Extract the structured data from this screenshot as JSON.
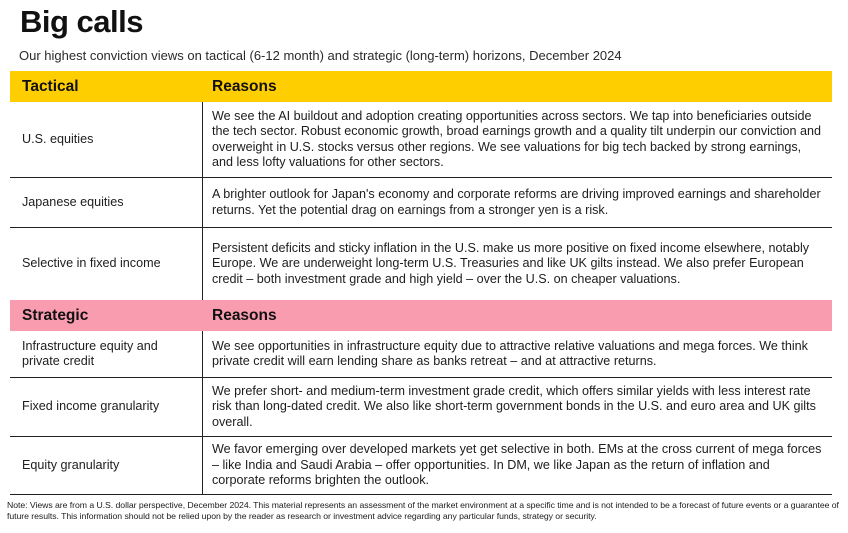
{
  "page": {
    "title": "Big calls",
    "subtitle": "Our highest conviction views on tactical (6-12 month) and strategic (long-term) horizons, December 2024",
    "note": "Note: Views are from a U.S. dollar perspective, December 2024. This material represents an assessment of the market environment at a specific time and is not intended to be a forecast of future events or a guarantee of future results. This information should not be relied upon by the reader as research or investment advice regarding any particular funds, strategy or security."
  },
  "colors": {
    "tactical_header": "#FFCE00",
    "strategic_header": "#F99CAF",
    "rule": "#222222",
    "text": "#1D1D1D"
  },
  "table": {
    "sections": [
      {
        "id": "tactical",
        "header": {
          "col1": "Tactical",
          "col2": "Reasons"
        },
        "rows": [
          {
            "label": "U.S. equities",
            "reason": "We see the AI buildout and adoption creating opportunities across sectors. We tap into beneficiaries outside the tech sector. Robust economic growth, broad earnings growth and a quality tilt underpin our conviction and overweight in U.S. stocks versus other regions. We see valuations for big tech backed by strong earnings, and less lofty valuations for other sectors."
          },
          {
            "label": "Japanese equities",
            "reason": "A brighter outlook for Japan's economy and corporate reforms are driving improved earnings and shareholder returns. Yet the potential drag on earnings from a stronger yen is a risk."
          },
          {
            "label": "Selective in fixed income",
            "reason": "Persistent deficits and sticky inflation in the U.S. make us more positive on fixed income elsewhere, notably Europe. We are underweight long-term U.S. Treasuries and like UK gilts instead. We also prefer European credit – both investment grade and high yield – over the U.S. on cheaper valuations."
          }
        ]
      },
      {
        "id": "strategic",
        "header": {
          "col1": "Strategic",
          "col2": "Reasons"
        },
        "rows": [
          {
            "label": "Infrastructure equity and private credit",
            "reason": "We see opportunities in infrastructure equity due to attractive relative valuations and mega forces. We think private credit will earn lending share as banks retreat – and at attractive returns."
          },
          {
            "label": "Fixed income granularity",
            "reason": "We prefer short- and medium-term investment grade credit, which offers similar yields with less interest rate risk than long-dated credit. We also like short-term government bonds in the U.S. and euro area and UK gilts overall."
          },
          {
            "label": "Equity granularity",
            "reason": "We favor emerging over developed markets yet get selective in both. EMs at the cross current of mega forces – like India and Saudi Arabia – offer opportunities. In DM, we like Japan as the return of inflation and corporate reforms brighten the outlook."
          }
        ]
      }
    ]
  }
}
